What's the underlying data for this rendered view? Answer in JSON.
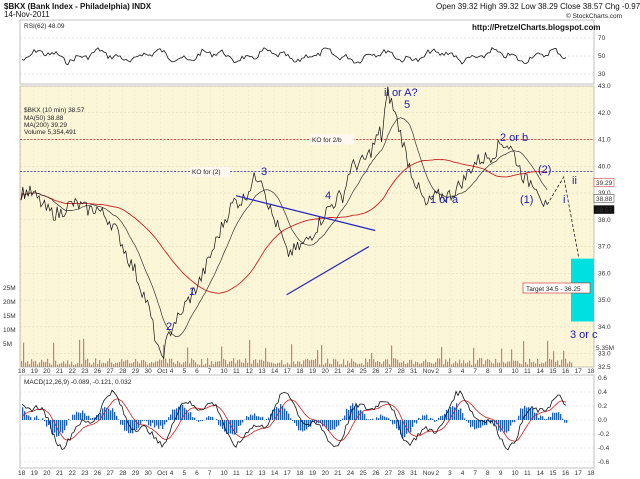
{
  "header": {
    "symbol": "$BKX (Bank Index - Philadelphia) INDX",
    "date": "14-Nov-2011",
    "quote": "Open 39.32  High 39.32  Low 38.29  Close 38.57  Chg -0.97 (-2.45%)",
    "credit": "© StockCharts.com",
    "blog": "http://PretzelCharts.blogspot.com"
  },
  "rsi_panel": {
    "label": "RSI(62) 48.09",
    "ticks": [
      "70",
      "50",
      "30"
    ]
  },
  "price_panel": {
    "label": "$BKX (10 min) 38.57",
    "legend": [
      "MA(50) 38.88",
      "MA(200) 39.29",
      "Volume 5,354,491"
    ],
    "ticks": [
      "43.0",
      "42.0",
      "41.0",
      "40.0",
      "39.0",
      "38.0",
      "37.0",
      "36.0",
      "35.0",
      "34.0",
      "33.0",
      "32.5"
    ],
    "volume_ticks": [
      "25M",
      "20M",
      "15M",
      "10M",
      "5M"
    ],
    "price_tags": [
      "39.29",
      "38.88",
      "38.57"
    ],
    "volume_tag": "5.35M"
  },
  "macd_panel": {
    "label": "MACD(12,26,9) -0.089, -0.121, 0.032",
    "ticks": [
      "0.6",
      "0.4",
      "0.2",
      "0.0",
      "-0.2",
      "-0.4",
      "-0.6"
    ]
  },
  "x_axis": {
    "labels": [
      "18",
      "19",
      "20",
      "21",
      "22",
      "23",
      "26",
      "27",
      "28",
      "29",
      "30",
      "Oct",
      "4",
      "5",
      "6",
      "7",
      "10",
      "11",
      "12",
      "13",
      "14",
      "17",
      "18",
      "19",
      "20",
      "21",
      "24",
      "25",
      "26",
      "27",
      "28",
      "31",
      "Nov",
      "2",
      "3",
      "4",
      "7",
      "8",
      "9",
      "10",
      "11",
      "14",
      "15",
      "16",
      "17",
      "18"
    ]
  },
  "annotations": {
    "ko_2b": "KO for 2/b",
    "ko_2": "KO for (2)",
    "w1": "1",
    "w2": "2",
    "w3": "3",
    "w4": "4",
    "w5_top": "ii or A?",
    "w5": "5",
    "one_or_a": "1 or a",
    "two_or_b": "2 or b",
    "paren_2": "(2)",
    "paren_1": "(1)",
    "ii": "ii",
    "i": "i",
    "target": "Target 34.5 - 36.25",
    "three_or_c": "3 or c"
  },
  "colors": {
    "price": "#111111",
    "ma50": "#333333",
    "ma200": "#cc2020",
    "wave_labels": "#1a1ab8",
    "ko_2b": "#cc2020",
    "ko_2": "#2424c8",
    "target_box": "#00e0e0",
    "volume": "#c08080",
    "macd_hist": "#1a5fb4",
    "macd_signal": "#cc2020"
  },
  "chart_data": {
    "type": "line",
    "title": "$BKX (Bank Index - Philadelphia) INDX",
    "x": [
      "Sep 16",
      "Sep 21",
      "Sep 26",
      "Sep 30",
      "Oct 4",
      "Oct 6",
      "Oct 12",
      "Oct 13",
      "Oct 17",
      "Oct 21",
      "Oct 24",
      "Oct 27",
      "Oct 28",
      "Nov 1",
      "Nov 4",
      "Nov 9",
      "Nov 11",
      "Nov 14"
    ],
    "series": [
      {
        "name": "$BKX (10 min)",
        "values": [
          39.0,
          38.3,
          38.6,
          36.3,
          33.0,
          34.6,
          38.7,
          39.6,
          36.6,
          38.6,
          39.7,
          41.2,
          42.6,
          38.4,
          39.5,
          41.0,
          39.6,
          38.57
        ]
      }
    ],
    "levels": [
      {
        "label": "KO for 2/b",
        "value": 41.0
      },
      {
        "label": "KO for (2)",
        "value": 39.8
      }
    ],
    "target_range": [
      34.5,
      36.25
    ],
    "ylim": [
      32.5,
      43.0
    ],
    "grid": true
  }
}
